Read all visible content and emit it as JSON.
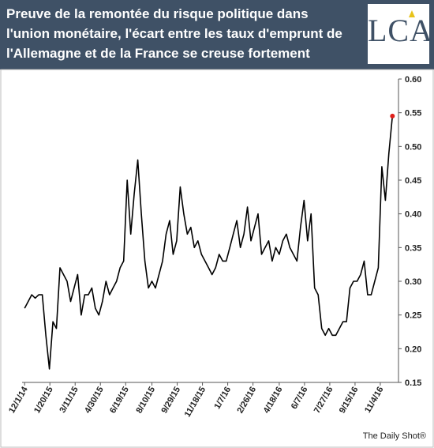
{
  "chart_data": {
    "type": "line",
    "title": "Preuve de la remontée du risque politique dans l'union monétaire, l'écart entre les taux d'emprunt de l'Allemagne et de la France se creuse fortement",
    "logo": "LCA",
    "source": "The Daily Shot®",
    "x": [
      "12/1/14",
      "12/8/14",
      "12/15/14",
      "12/22/14",
      "12/29/14",
      "1/5/15",
      "1/12/15",
      "1/19/15",
      "1/26/15",
      "2/2/15",
      "2/9/15",
      "2/16/15",
      "2/23/15",
      "3/2/15",
      "3/9/15",
      "3/16/15",
      "3/23/15",
      "3/30/15",
      "4/6/15",
      "4/13/15",
      "4/20/15",
      "4/27/15",
      "5/4/15",
      "5/11/15",
      "5/18/15",
      "5/25/15",
      "6/1/15",
      "6/8/15",
      "6/15/15",
      "6/22/15",
      "6/29/15",
      "7/6/15",
      "7/13/15",
      "7/20/15",
      "7/27/15",
      "8/3/15",
      "8/10/15",
      "8/17/15",
      "8/24/15",
      "8/31/15",
      "9/7/15",
      "9/14/15",
      "9/21/15",
      "9/28/15",
      "10/5/15",
      "10/12/15",
      "10/19/15",
      "10/26/15",
      "11/2/15",
      "11/9/15",
      "11/16/15",
      "11/23/15",
      "11/30/15",
      "12/7/15",
      "12/14/15",
      "12/21/15",
      "12/28/15",
      "1/4/16",
      "1/11/16",
      "1/18/16",
      "1/25/16",
      "2/1/16",
      "2/8/16",
      "2/15/16",
      "2/22/16",
      "2/29/16",
      "3/7/16",
      "3/14/16",
      "3/21/16",
      "3/28/16",
      "4/4/16",
      "4/11/16",
      "4/18/16",
      "4/25/16",
      "5/2/16",
      "5/9/16",
      "5/16/16",
      "5/23/16",
      "5/30/16",
      "6/6/16",
      "6/13/16",
      "6/20/16",
      "6/27/16",
      "7/4/16",
      "7/11/16",
      "7/18/16",
      "7/25/16",
      "8/1/16",
      "8/8/16",
      "8/15/16",
      "8/22/16",
      "8/29/16",
      "9/5/16",
      "9/12/16",
      "9/19/16",
      "9/26/16",
      "10/3/16",
      "10/10/16",
      "10/17/16",
      "10/24/16",
      "10/31/16",
      "11/7/16",
      "11/14/16",
      "11/21/16",
      "11/28/16"
    ],
    "values": [
      0.26,
      0.27,
      0.28,
      0.275,
      0.28,
      0.28,
      0.22,
      0.17,
      0.24,
      0.23,
      0.32,
      0.31,
      0.3,
      0.27,
      0.29,
      0.31,
      0.25,
      0.28,
      0.28,
      0.29,
      0.26,
      0.25,
      0.27,
      0.3,
      0.28,
      0.29,
      0.3,
      0.32,
      0.33,
      0.45,
      0.37,
      0.43,
      0.48,
      0.4,
      0.33,
      0.29,
      0.3,
      0.29,
      0.31,
      0.33,
      0.37,
      0.39,
      0.34,
      0.36,
      0.44,
      0.4,
      0.37,
      0.38,
      0.35,
      0.36,
      0.34,
      0.33,
      0.32,
      0.31,
      0.32,
      0.34,
      0.33,
      0.33,
      0.35,
      0.37,
      0.39,
      0.35,
      0.37,
      0.41,
      0.36,
      0.38,
      0.4,
      0.34,
      0.35,
      0.36,
      0.33,
      0.35,
      0.34,
      0.36,
      0.37,
      0.35,
      0.34,
      0.33,
      0.38,
      0.42,
      0.36,
      0.4,
      0.29,
      0.28,
      0.23,
      0.22,
      0.23,
      0.22,
      0.22,
      0.23,
      0.24,
      0.24,
      0.29,
      0.3,
      0.3,
      0.31,
      0.33,
      0.28,
      0.28,
      0.3,
      0.32,
      0.47,
      0.42,
      0.49,
      0.545
    ],
    "color": "#000000",
    "highlight_color": "#e0201b",
    "xlim": [
      "11/26/14",
      "12/10/16"
    ],
    "xticks": [
      "12/1/14",
      "1/20/15",
      "3/11/15",
      "4/30/15",
      "6/19/15",
      "8/10/15",
      "9/29/15",
      "11/18/15",
      "1/7/16",
      "2/26/16",
      "4/18/16",
      "6/7/16",
      "7/27/16",
      "9/15/16",
      "11/4/16"
    ],
    "ylim": [
      0.15,
      0.6
    ],
    "yticks": [
      0.15,
      {
        "value": 0.2,
        "label": "0.20"
      },
      0.25,
      {
        "value": 0.3,
        "label": "0.30"
      },
      0.35,
      {
        "value": 0.4,
        "label": "0.40"
      },
      0.45,
      {
        "value": 0.5,
        "label": "0.50"
      },
      0.55,
      {
        "value": 0.6,
        "label": "0.60"
      }
    ],
    "y_axis_side": "right",
    "grid": false
  }
}
